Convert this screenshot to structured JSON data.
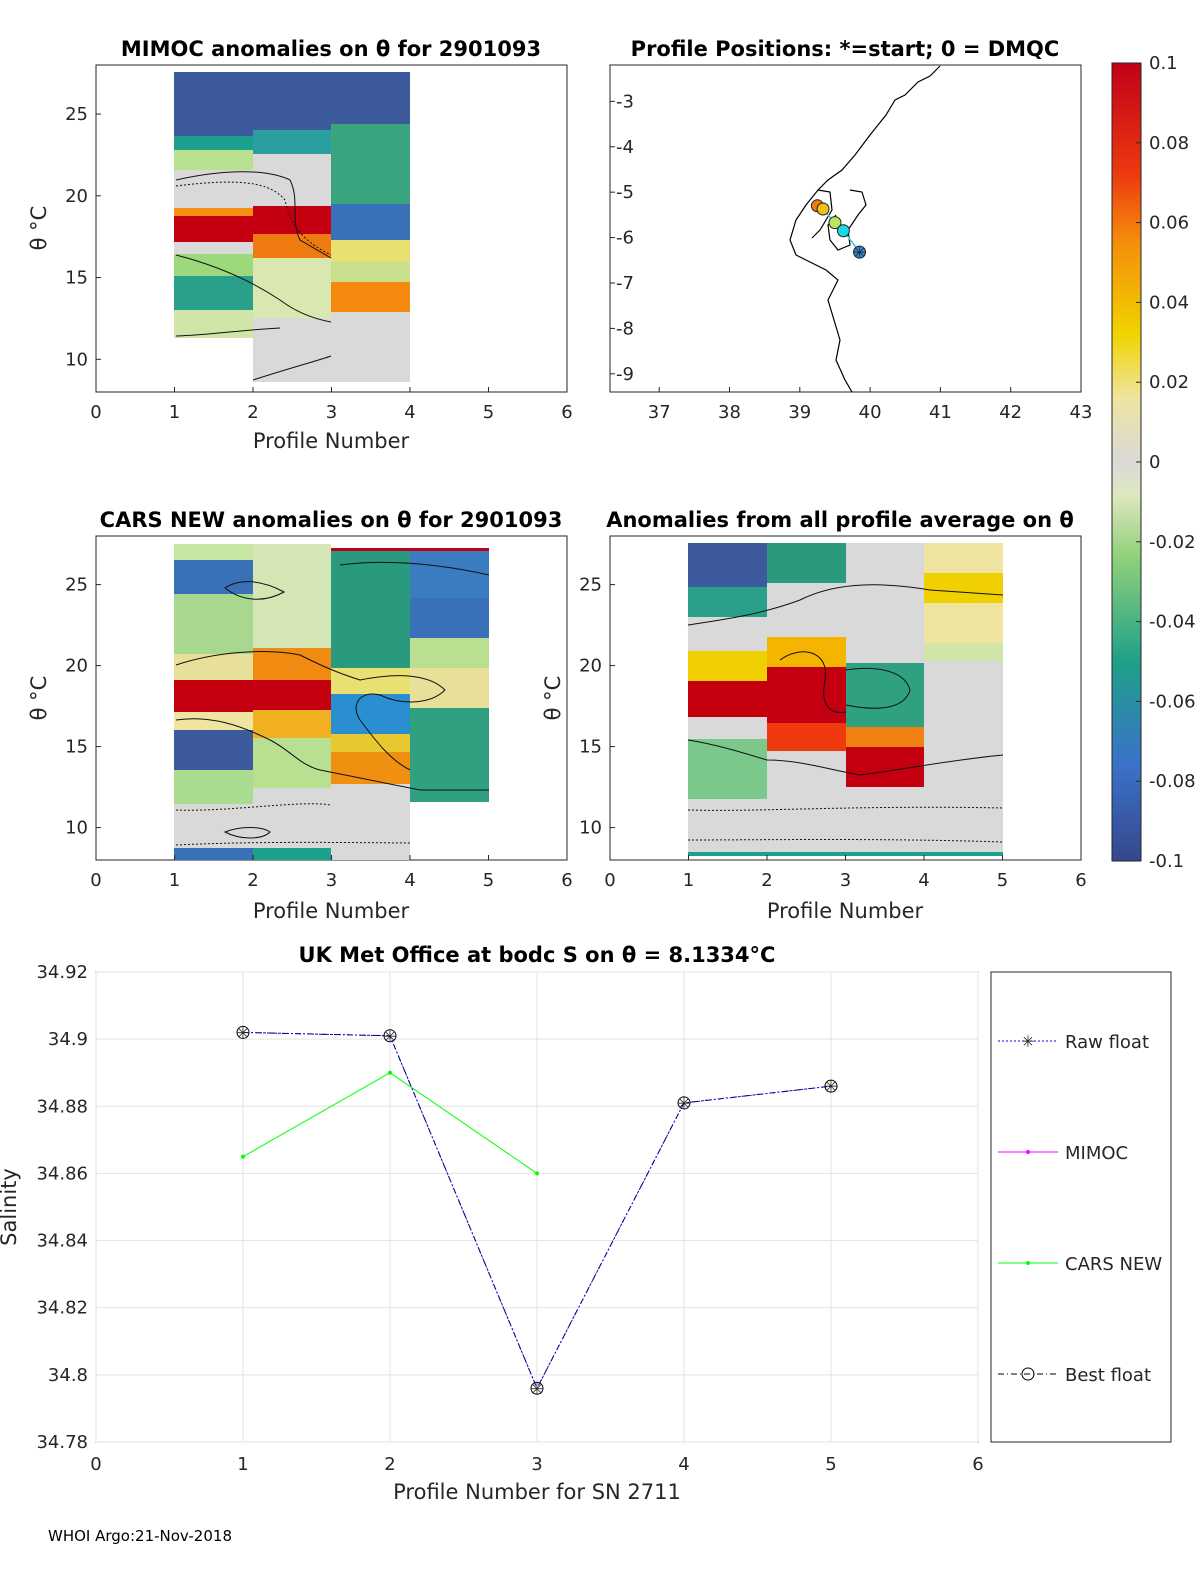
{
  "footer": "WHOI Argo:21-Nov-2018",
  "colors": {
    "raw": "#0000ff",
    "mimoc": "#ff00ff",
    "cars": "#00ff00",
    "best": "#000000"
  },
  "colorbar": {
    "ticks": [
      "0.1",
      "0.08",
      "0.06",
      "0.04",
      "0.02",
      "0",
      "-0.02",
      "-0.04",
      "-0.06",
      "-0.08",
      "-0.1"
    ],
    "min": -0.1,
    "max": 0.1
  },
  "panels": {
    "mimoc": {
      "title": "MIMOC anomalies on θ  for 2901093",
      "xlabel": "Profile Number",
      "ylabel": "θ °C",
      "xticks": [
        "0",
        "1",
        "2",
        "3",
        "4",
        "5",
        "6"
      ],
      "yticks": [
        "10",
        "15",
        "20",
        "25"
      ],
      "xlim": [
        0,
        6
      ],
      "ylim": [
        8,
        28
      ]
    },
    "positions": {
      "title": "Profile Positions: *=start; 0 = DMQC",
      "xticks": [
        "37",
        "38",
        "39",
        "40",
        "41",
        "42",
        "43"
      ],
      "yticks": [
        "-3",
        "-4",
        "-5",
        "-6",
        "-7",
        "-8",
        "-9"
      ],
      "xlim": [
        36.3,
        43
      ],
      "ylim": [
        -9.4,
        -2.2
      ],
      "points": [
        {
          "lon": 39.85,
          "lat": -6.32,
          "color": "#2a8fe0",
          "start": true
        },
        {
          "lon": 39.62,
          "lat": -5.85,
          "color": "#1ad8e8"
        },
        {
          "lon": 39.5,
          "lat": -5.67,
          "color": "#b4e860"
        },
        {
          "lon": 39.33,
          "lat": -5.37,
          "color": "#f2c010"
        },
        {
          "lon": 39.25,
          "lat": -5.3,
          "color": "#ef7a10"
        }
      ]
    },
    "cars": {
      "title": "CARS NEW anomalies on θ for 2901093",
      "xlabel": "Profile Number",
      "ylabel": "θ °C",
      "xticks": [
        "0",
        "1",
        "2",
        "3",
        "4",
        "5",
        "6"
      ],
      "yticks": [
        "10",
        "15",
        "20",
        "25"
      ],
      "xlim": [
        0,
        6
      ],
      "ylim": [
        8,
        28
      ]
    },
    "avg": {
      "title": "Anomalies from all profile average on θ",
      "xlabel": "Profile Number",
      "ylabel": "θ °C",
      "xticks": [
        "0",
        "1",
        "2",
        "3",
        "4",
        "5",
        "6"
      ],
      "yticks": [
        "10",
        "15",
        "20",
        "25"
      ],
      "xlim": [
        0,
        6
      ],
      "ylim": [
        8,
        28
      ]
    }
  },
  "chart_data": {
    "type": "line",
    "title": "UK Met Office at bodc S on θ = 8.1334°C",
    "xlabel": "Profile Number for SN 2711",
    "ylabel": "Salinity",
    "xlim": [
      0,
      6
    ],
    "ylim": [
      34.78,
      34.92
    ],
    "xticks": [
      "0",
      "1",
      "2",
      "3",
      "4",
      "5",
      "6"
    ],
    "yticks": [
      "34.92",
      "34.9",
      "34.88",
      "34.86",
      "34.84",
      "34.82",
      "34.8",
      "34.78"
    ],
    "grid": true,
    "legend_position": "right",
    "series": [
      {
        "name": "Raw float",
        "x": [
          1,
          2,
          3,
          4,
          5
        ],
        "values": [
          34.902,
          34.901,
          34.796,
          34.881,
          34.886
        ]
      },
      {
        "name": "MIMOC",
        "x": [],
        "values": []
      },
      {
        "name": "CARS NEW",
        "x": [
          1,
          2,
          3
        ],
        "values": [
          34.865,
          34.89,
          34.86
        ]
      },
      {
        "name": "Best float",
        "x": [
          1,
          2,
          3,
          4,
          5
        ],
        "values": [
          34.902,
          34.901,
          34.796,
          34.881,
          34.886
        ]
      }
    ]
  }
}
